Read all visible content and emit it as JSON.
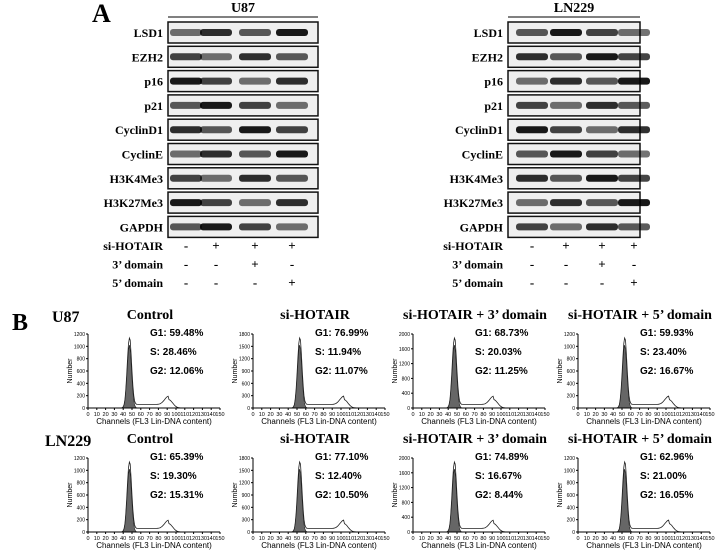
{
  "panel_a": {
    "label": "A",
    "blots": [
      {
        "cell_line": "U87",
        "proteins": [
          "LSD1",
          "EZH2",
          "p16",
          "p21",
          "CyclinD1",
          "CyclinE",
          "H3K4Me3",
          "H3K27Me3",
          "GAPDH"
        ],
        "treatments": [
          {
            "name": "si-HOTAIR",
            "signs": [
              "-",
              "+",
              "+",
              "+"
            ]
          },
          {
            "name": "3’ domain",
            "signs": [
              "-",
              "-",
              "+",
              "-"
            ]
          },
          {
            "name": "5’ domain",
            "signs": [
              "-",
              "-",
              "-",
              "+"
            ]
          }
        ]
      },
      {
        "cell_line": "LN229",
        "proteins": [
          "LSD1",
          "EZH2",
          "p16",
          "p21",
          "CyclinD1",
          "CyclinE",
          "H3K4Me3",
          "H3K27Me3",
          "GAPDH"
        ],
        "treatments": [
          {
            "name": "si-HOTAIR",
            "signs": [
              "-",
              "+",
              "+",
              "+"
            ]
          },
          {
            "name": "3’ domain",
            "signs": [
              "-",
              "-",
              "+",
              "-"
            ]
          },
          {
            "name": "5’ domain",
            "signs": [
              "-",
              "-",
              "-",
              "+"
            ]
          }
        ]
      }
    ]
  },
  "panel_b": {
    "label": "B",
    "x_axis_label": "Channels (FL3 Lin-DNA content)",
    "y_axis_label": "Number",
    "xticks": [
      0,
      10,
      20,
      30,
      40,
      50,
      60,
      70,
      80,
      90,
      100,
      110,
      120,
      130,
      140,
      150
    ],
    "rows": [
      {
        "cell_line": "U87",
        "plots": [
          {
            "title": "Control",
            "stats": [
              "G1: 59.48%",
              "S: 28.46%",
              "G2: 12.06%"
            ],
            "yticks": [
              0,
              200,
              400,
              600,
              800,
              1000,
              1200
            ]
          },
          {
            "title": "si-HOTAIR",
            "stats": [
              "G1: 76.99%",
              "S: 11.94%",
              "G2: 11.07%"
            ],
            "yticks": [
              0,
              300,
              600,
              900,
              1200,
              1500,
              1800
            ]
          },
          {
            "title": "si-HOTAIR + 3’ domain",
            "stats": [
              "G1: 68.73%",
              "S: 20.03%",
              "G2: 11.25%"
            ],
            "yticks": [
              0,
              400,
              800,
              1200,
              1600,
              2000
            ]
          },
          {
            "title": "si-HOTAIR + 5’ domain",
            "stats": [
              "G1: 59.93%",
              "S: 23.40%",
              "G2: 16.67%"
            ],
            "yticks": [
              0,
              200,
              400,
              600,
              800,
              1000,
              1200
            ]
          }
        ]
      },
      {
        "cell_line": "LN229",
        "plots": [
          {
            "title": "Control",
            "stats": [
              "G1: 65.39%",
              "S: 19.30%",
              "G2: 15.31%"
            ],
            "yticks": [
              0,
              200,
              400,
              600,
              800,
              1000,
              1200
            ]
          },
          {
            "title": "si-HOTAIR",
            "stats": [
              "G1: 77.10%",
              "S: 12.40%",
              "G2: 10.50%"
            ],
            "yticks": [
              0,
              300,
              600,
              900,
              1200,
              1500,
              1800
            ]
          },
          {
            "title": "si-HOTAIR + 3’ domain",
            "stats": [
              "G1: 74.89%",
              "S: 16.67%",
              "G2: 8.44%"
            ],
            "yticks": [
              0,
              400,
              800,
              1200,
              1600,
              2000
            ]
          },
          {
            "title": "si-HOTAIR + 5’ domain",
            "stats": [
              "G1: 62.96%",
              "S: 21.00%",
              "G2: 16.05%"
            ],
            "yticks": [
              0,
              200,
              400,
              600,
              800,
              1000,
              1200
            ]
          }
        ]
      }
    ]
  }
}
